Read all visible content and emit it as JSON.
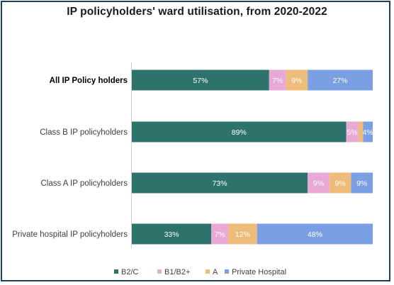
{
  "chart_data": {
    "type": "bar",
    "orientation": "horizontal",
    "stacked": true,
    "percent_stacked": true,
    "title": "IP policyholders' ward utilisation, from 2020-2022",
    "xlabel": "",
    "ylabel": "",
    "xlim": [
      0,
      100
    ],
    "grid": false,
    "legend_position": "bottom",
    "categories": [
      "All IP Policy holders",
      "Class B IP policyholders",
      "Class A IP policyholders",
      "Private hospital IP policyholders"
    ],
    "highlighted_category": "All IP Policy holders",
    "series": [
      {
        "name": "B2/C",
        "color": "#2e736b",
        "values": [
          57,
          89,
          73,
          33
        ],
        "labels": [
          "57%",
          "89%",
          "73%",
          "33%"
        ]
      },
      {
        "name": "B1/B2+",
        "color": "#e8a9d6",
        "values": [
          7,
          5,
          9,
          7
        ],
        "labels": [
          "7%",
          "5%",
          "9%",
          "7%"
        ]
      },
      {
        "name": "A",
        "color": "#edbc7a",
        "values": [
          9,
          2,
          9,
          12
        ],
        "labels": [
          "9%",
          "",
          "9%",
          "12%"
        ]
      },
      {
        "name": "Private Hospital",
        "color": "#7a9fe3",
        "values": [
          27,
          4,
          9,
          48
        ],
        "labels": [
          "27%",
          "4%",
          "9%",
          "48%"
        ]
      }
    ]
  }
}
